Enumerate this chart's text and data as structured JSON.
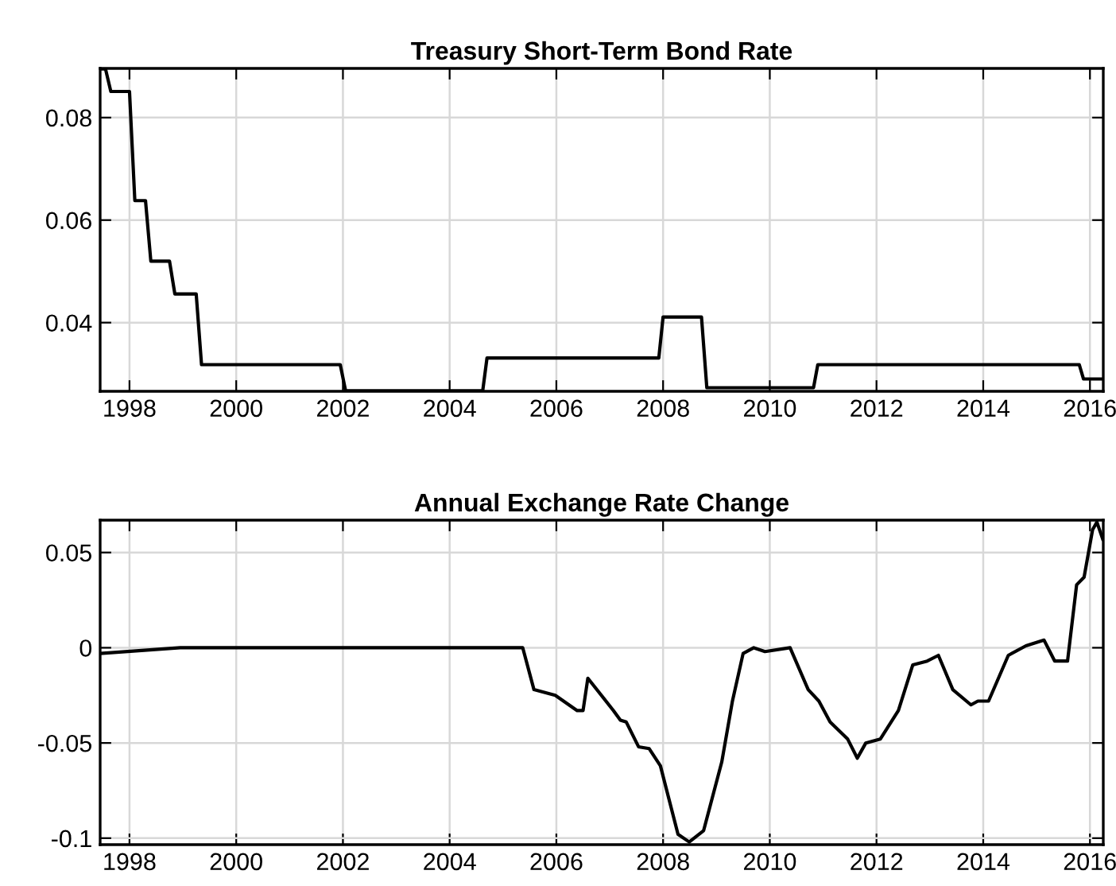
{
  "chart_data": [
    {
      "type": "line",
      "title": "Treasury Short-Term Bond Rate",
      "xlim": [
        1997.45,
        2016.25
      ],
      "ylim": [
        0.0266,
        0.0896
      ],
      "xticks": [
        1998,
        2000,
        2002,
        2004,
        2006,
        2008,
        2010,
        2012,
        2014,
        2016
      ],
      "yticks": [
        0.04,
        0.06,
        0.08
      ],
      "grid": true,
      "marker": "none",
      "line_style": "solid",
      "series": [
        {
          "color": "#000000",
          "x": [
            1997.45,
            1997.55,
            1997.65,
            1998.0,
            1998.1,
            1998.3,
            1998.4,
            1998.75,
            1998.85,
            1999.25,
            1999.35,
            2001.95,
            2002.05,
            2004.62,
            2004.7,
            2007.92,
            2008.0,
            2008.72,
            2008.82,
            2010.82,
            2010.9,
            2015.8,
            2015.88,
            2016.25
          ],
          "values": [
            0.0895,
            0.0895,
            0.0851,
            0.0851,
            0.0638,
            0.0638,
            0.052,
            0.052,
            0.0456,
            0.0456,
            0.0318,
            0.0318,
            0.0267,
            0.0267,
            0.0331,
            0.0331,
            0.0411,
            0.0411,
            0.0273,
            0.0273,
            0.0318,
            0.0318,
            0.029,
            0.029
          ]
        }
      ]
    },
    {
      "type": "line",
      "title": "Annual Exchange Rate Change",
      "xlim": [
        1997.45,
        2016.25
      ],
      "ylim": [
        -0.1034,
        0.067
      ],
      "xticks": [
        1998,
        2000,
        2002,
        2004,
        2006,
        2008,
        2010,
        2012,
        2014,
        2016
      ],
      "yticks": [
        -0.1,
        -0.05,
        0,
        0.05
      ],
      "grid": true,
      "marker": "none",
      "line_style": "solid",
      "series": [
        {
          "color": "#000000",
          "x": [
            1997.45,
            1998.95,
            2005.37,
            2005.58,
            2005.98,
            2006.39,
            2006.5,
            2006.59,
            2007.07,
            2007.2,
            2007.31,
            2007.54,
            2007.74,
            2007.95,
            2008.28,
            2008.49,
            2008.76,
            2009.1,
            2009.3,
            2009.5,
            2009.7,
            2009.91,
            2010.38,
            2010.72,
            2010.92,
            2011.13,
            2011.46,
            2011.64,
            2011.8,
            2012.07,
            2012.41,
            2012.68,
            2012.95,
            2013.16,
            2013.43,
            2013.77,
            2013.9,
            2014.1,
            2014.47,
            2014.8,
            2015.14,
            2015.34,
            2015.58,
            2015.75,
            2015.89,
            2016.05,
            2016.13,
            2016.24
          ],
          "values": [
            -0.003,
            0.0,
            0.0,
            -0.022,
            -0.025,
            -0.033,
            -0.033,
            -0.016,
            -0.033,
            -0.038,
            -0.039,
            -0.052,
            -0.053,
            -0.062,
            -0.098,
            -0.102,
            -0.096,
            -0.06,
            -0.028,
            -0.003,
            0.0,
            -0.002,
            0.0,
            -0.022,
            -0.028,
            -0.039,
            -0.048,
            -0.058,
            -0.05,
            -0.048,
            -0.033,
            -0.009,
            -0.007,
            -0.004,
            -0.022,
            -0.03,
            -0.028,
            -0.028,
            -0.004,
            0.001,
            0.004,
            -0.007,
            -0.007,
            0.033,
            0.037,
            0.062,
            0.066,
            0.057
          ]
        }
      ]
    }
  ]
}
